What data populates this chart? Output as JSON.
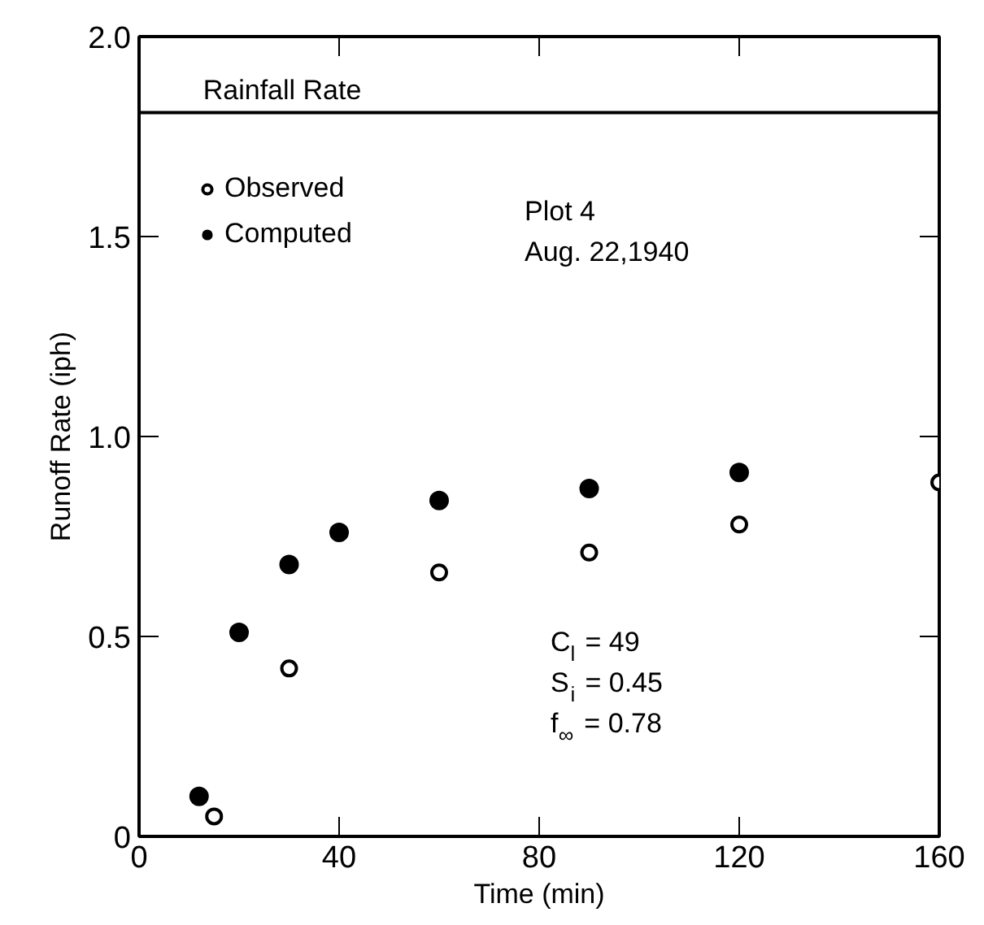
{
  "chart_data": {
    "type": "scatter",
    "xlabel": "Time (min)",
    "ylabel": "Runoff Rate (iph)",
    "xlim": [
      0,
      160
    ],
    "ylim": [
      0,
      2.0
    ],
    "xticks": [
      0,
      40,
      80,
      120,
      160
    ],
    "yticks": [
      0,
      0.5,
      {
        "value": 1,
        "label": "1.0"
      },
      1.5,
      {
        "value": 2,
        "label": "2.0"
      }
    ],
    "series": [
      {
        "name": "Observed",
        "color": "#000000",
        "marker": "circle_open",
        "x": [
          15,
          30,
          60,
          90,
          120,
          160
        ],
        "values": [
          0.05,
          0.42,
          0.66,
          0.71,
          0.78,
          0.885
        ]
      },
      {
        "name": "Computed",
        "color": "#000000",
        "marker": "circle",
        "x": [
          12,
          20,
          30,
          40,
          60,
          90,
          120
        ],
        "values": [
          0.1,
          0.51,
          0.68,
          0.76,
          0.84,
          0.87,
          0.91
        ]
      }
    ],
    "ref_lines": [
      {
        "axis": "y",
        "value": 1.81,
        "label": "Rainfall Rate",
        "color": "#000000"
      }
    ],
    "annotations": [
      "Plot 4",
      "Aug. 22,1940",
      "C$_{l}$ = 49",
      "S$_{i}$ = 0.45",
      "f$_{∞}$= 0.78"
    ],
    "legend": "top left",
    "grid": false
  }
}
